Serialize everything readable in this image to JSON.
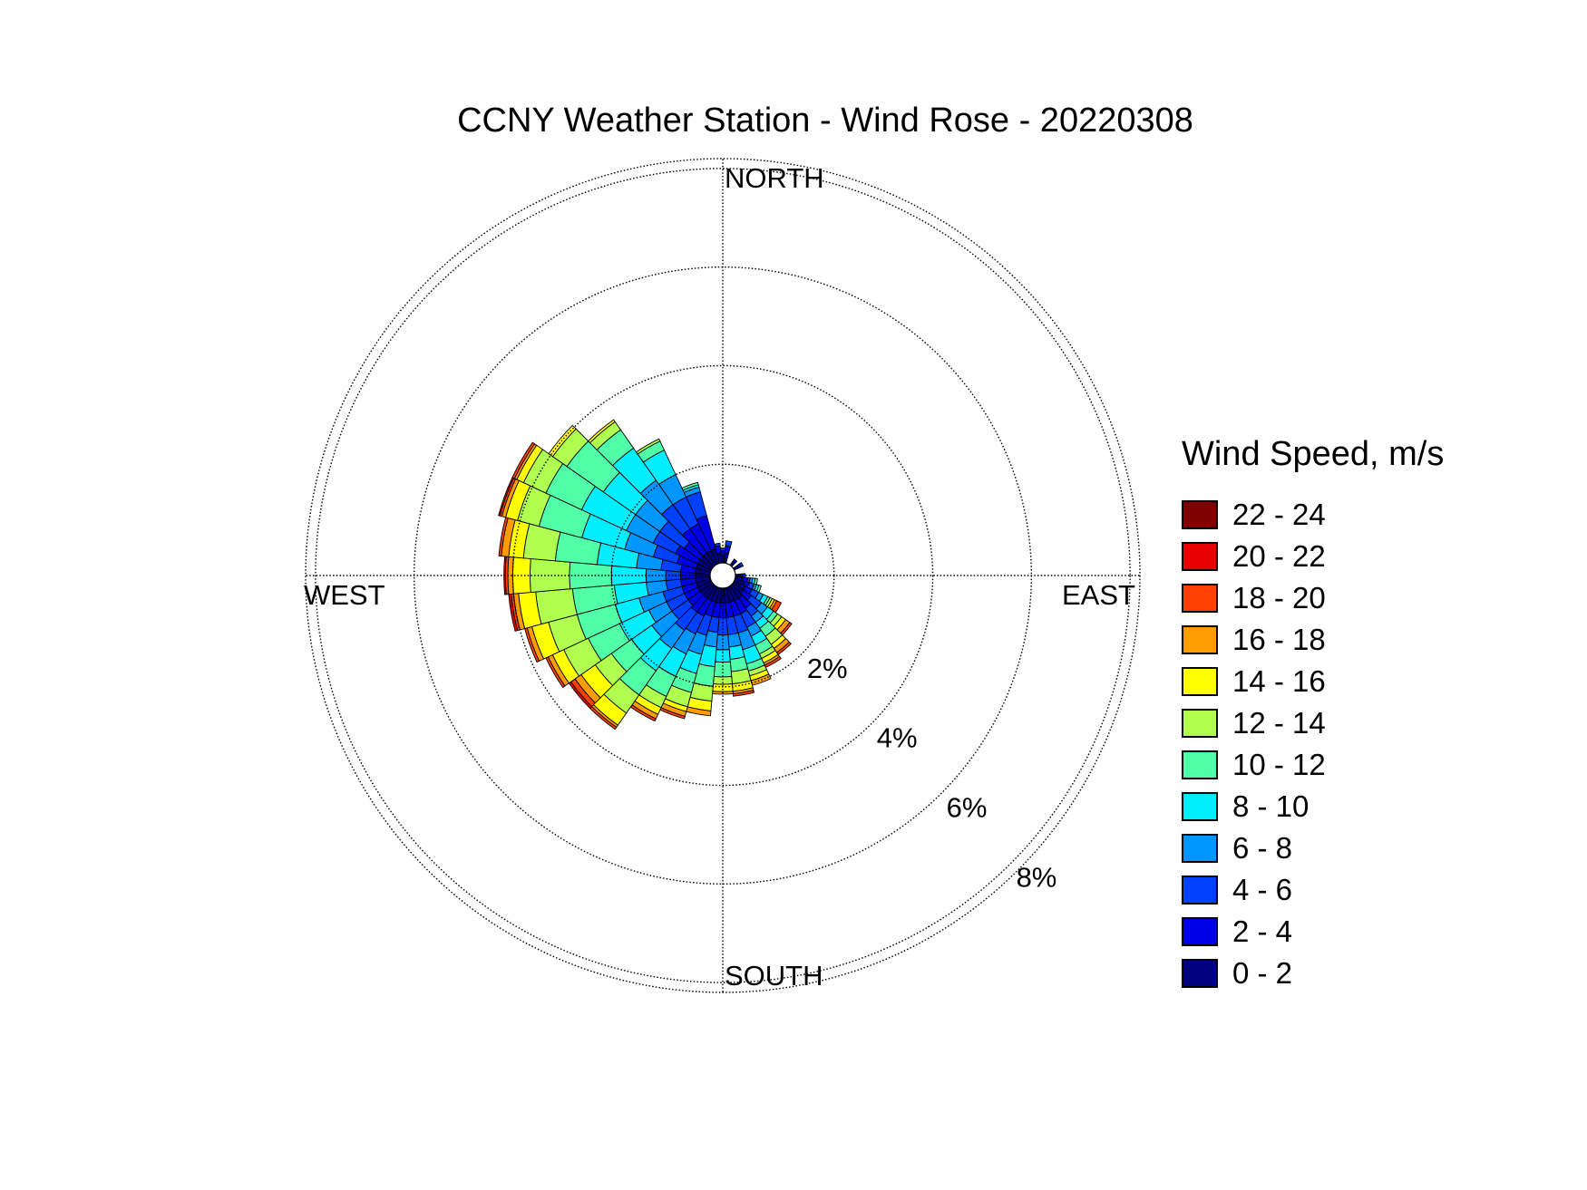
{
  "chart_data": {
    "type": "wind-rose",
    "title": "CCNY Weather Station - Wind Rose - 20220308",
    "directions": {
      "north": "NORTH",
      "east": "EAST",
      "south": "SOUTH",
      "west": "WEST"
    },
    "radial_ticks": [
      "2%",
      "4%",
      "6%",
      "8%"
    ],
    "radial_tick_values": [
      2,
      4,
      6,
      8
    ],
    "radial_max": 8.2,
    "sector_width_deg": 10,
    "legend_title": "Wind Speed, m/s",
    "bins": [
      {
        "label": "0 - 2",
        "color": "#000080"
      },
      {
        "label": "2 - 4",
        "color": "#0000e6"
      },
      {
        "label": "4 - 6",
        "color": "#0040ff"
      },
      {
        "label": "6 - 8",
        "color": "#0096ff"
      },
      {
        "label": "8 - 10",
        "color": "#00eeff"
      },
      {
        "label": "10 - 12",
        "color": "#50ffa8"
      },
      {
        "label": "12 - 14",
        "color": "#b0ff50"
      },
      {
        "label": "14 - 16",
        "color": "#ffff00"
      },
      {
        "label": "16 - 18",
        "color": "#ff9c00"
      },
      {
        "label": "18 - 20",
        "color": "#ff4000"
      },
      {
        "label": "20 - 22",
        "color": "#e60000"
      },
      {
        "label": "22 - 24",
        "color": "#800000"
      }
    ],
    "sectors": [
      {
        "direction": 0,
        "cumulative": [
          0.15,
          0.25,
          0.3
        ]
      },
      {
        "direction": 10,
        "cumulative": [
          0.2,
          0.35,
          0.45
        ]
      },
      {
        "direction": 40,
        "cumulative": [
          0.1,
          0.15
        ]
      },
      {
        "direction": 60,
        "cumulative": [
          0.1,
          0.15,
          0.2
        ]
      },
      {
        "direction": 90,
        "cumulative": [
          0.1,
          0.15,
          0.2
        ]
      },
      {
        "direction": 100,
        "cumulative": [
          0.15,
          0.25,
          0.3,
          0.35,
          0.4,
          0.45
        ]
      },
      {
        "direction": 110,
        "cumulative": [
          0.2,
          0.3,
          0.4,
          0.45,
          0.5,
          0.55
        ]
      },
      {
        "direction": 120,
        "cumulative": [
          0.25,
          0.4,
          0.55,
          0.65,
          0.75,
          0.8,
          0.85,
          0.9,
          0.95,
          1.05
        ]
      },
      {
        "direction": 130,
        "cumulative": [
          0.25,
          0.45,
          0.7,
          0.85,
          1.0,
          1.1,
          1.2,
          1.3,
          1.4,
          1.45
        ]
      },
      {
        "direction": 140,
        "cumulative": [
          0.3,
          0.55,
          0.75,
          0.9,
          1.05,
          1.25,
          1.45,
          1.55,
          1.65,
          1.7
        ]
      },
      {
        "direction": 150,
        "cumulative": [
          0.3,
          0.6,
          0.9,
          1.1,
          1.3,
          1.5,
          1.6,
          1.7,
          1.75,
          1.8
        ]
      },
      {
        "direction": 160,
        "cumulative": [
          0.3,
          0.6,
          0.95,
          1.3,
          1.6,
          1.75,
          1.85,
          1.95,
          2.05
        ]
      },
      {
        "direction": 170,
        "cumulative": [
          0.3,
          0.6,
          0.95,
          1.2,
          1.45,
          1.7,
          1.95,
          2.1,
          2.15,
          2.2
        ]
      },
      {
        "direction": 180,
        "cumulative": [
          0.3,
          0.6,
          0.95,
          1.25,
          1.5,
          1.8,
          1.95,
          2.1,
          2.15
        ]
      },
      {
        "direction": 190,
        "cumulative": [
          0.3,
          0.6,
          0.9,
          1.2,
          1.6,
          2.0,
          2.3,
          2.5,
          2.6
        ]
      },
      {
        "direction": 200,
        "cumulative": [
          0.3,
          0.6,
          1.0,
          1.4,
          1.8,
          2.2,
          2.5,
          2.6,
          2.7,
          2.75
        ]
      },
      {
        "direction": 210,
        "cumulative": [
          0.3,
          0.65,
          1.05,
          1.5,
          2.0,
          2.45,
          2.7,
          2.85,
          2.95,
          3.0
        ]
      },
      {
        "direction": 220,
        "cumulative": [
          0.3,
          0.65,
          1.1,
          1.55,
          2.1,
          2.7,
          3.15,
          3.45,
          3.5,
          3.55
        ]
      },
      {
        "direction": 230,
        "cumulative": [
          0.3,
          0.6,
          1.0,
          1.5,
          2.0,
          2.5,
          2.9,
          3.25,
          3.4,
          3.5,
          3.55
        ]
      },
      {
        "direction": 240,
        "cumulative": [
          0.3,
          0.6,
          1.0,
          1.4,
          2.05,
          2.75,
          3.3,
          3.55,
          3.65,
          3.7
        ]
      },
      {
        "direction": 250,
        "cumulative": [
          0.3,
          0.6,
          1.0,
          1.5,
          2.0,
          2.8,
          3.4,
          3.75,
          3.85,
          3.9
        ]
      },
      {
        "direction": 260,
        "cumulative": [
          0.3,
          0.6,
          0.9,
          1.3,
          1.95,
          2.8,
          3.55,
          3.9,
          4.0,
          4.05,
          4.1
        ]
      },
      {
        "direction": 270,
        "cumulative": [
          0.3,
          0.6,
          0.9,
          1.3,
          2.0,
          2.85,
          3.65,
          4.0,
          4.1,
          4.15,
          4.18
        ]
      },
      {
        "direction": 280,
        "cumulative": [
          0.3,
          0.6,
          1.0,
          1.5,
          2.3,
          3.15,
          3.8,
          4.1,
          4.25,
          4.3
        ]
      },
      {
        "direction": 290,
        "cumulative": [
          0.3,
          0.7,
          1.2,
          1.8,
          2.7,
          3.6,
          4.05,
          4.3,
          4.38,
          4.42,
          4.45
        ]
      },
      {
        "direction": 300,
        "cumulative": [
          0.3,
          0.8,
          1.3,
          1.9,
          2.9,
          3.7,
          4.2,
          4.35,
          4.4,
          4.45
        ]
      },
      {
        "direction": 310,
        "cumulative": [
          0.3,
          0.7,
          1.3,
          1.9,
          2.7,
          3.6,
          3.95,
          4.05
        ]
      },
      {
        "direction": 320,
        "cumulative": [
          0.3,
          0.9,
          1.5,
          2.1,
          2.9,
          3.35,
          3.55,
          3.6
        ]
      },
      {
        "direction": 330,
        "cumulative": [
          0.3,
          0.9,
          1.5,
          2.0,
          2.55,
          2.75,
          2.8
        ]
      },
      {
        "direction": 340,
        "cumulative": [
          0.3,
          1.0,
          1.5,
          1.6,
          1.65,
          1.7
        ]
      },
      {
        "direction": 350,
        "cumulative": [
          0.2,
          0.35,
          0.4
        ]
      }
    ]
  }
}
